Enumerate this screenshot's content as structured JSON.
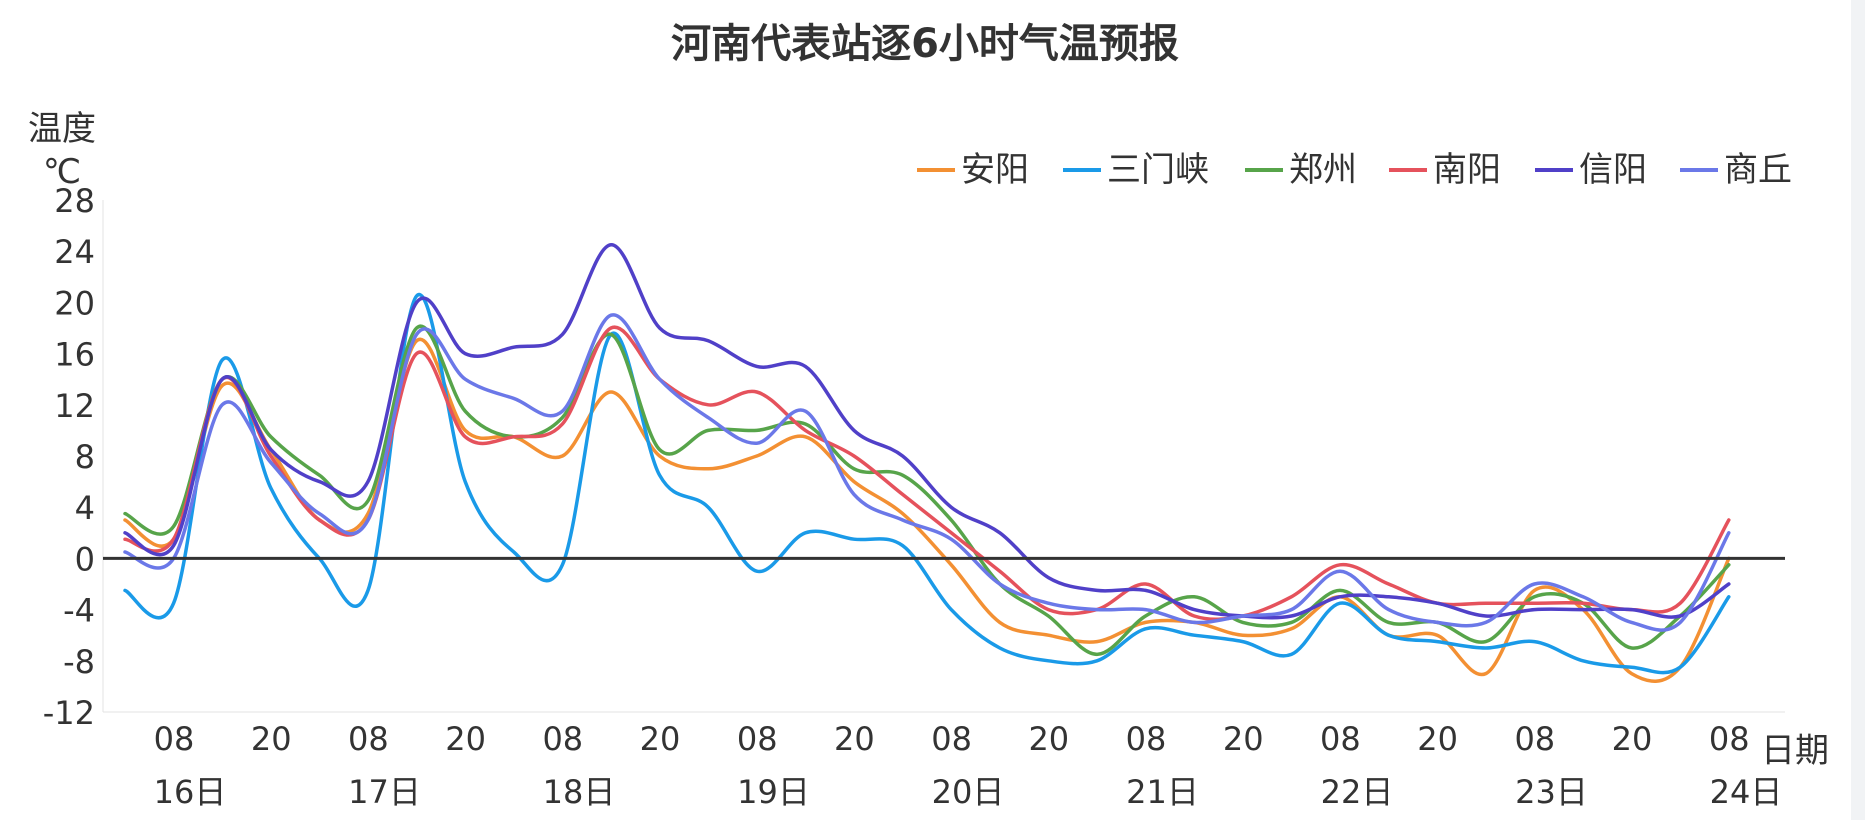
{
  "chart_data": {
    "type": "line",
    "title": "河南代表站逐6小时气温预报",
    "ylabel": "温度",
    "yunit": "℃",
    "xlabel": "日期",
    "ylim": [
      -12,
      28
    ],
    "yticks": [
      28,
      24,
      20,
      16,
      12,
      8,
      4,
      0,
      -4,
      -8,
      -12
    ],
    "hour_labels": [
      "08",
      "20",
      "08",
      "20",
      "08",
      "20",
      "08",
      "20",
      "08",
      "20",
      "08",
      "20",
      "08",
      "20",
      "08",
      "20",
      "08"
    ],
    "day_labels": [
      "16日",
      "17日",
      "18日",
      "19日",
      "20日",
      "21日",
      "22日",
      "23日",
      "24日"
    ],
    "zero_line": true,
    "legend_position": "top-right",
    "series": [
      {
        "name": "安阳",
        "color": "#f39033",
        "values": [
          3.0,
          1.5,
          13.5,
          8.5,
          3.0,
          3.5,
          17.0,
          10.0,
          9.5,
          8.0,
          13.0,
          8.0,
          7.0,
          8.0,
          9.5,
          6.0,
          3.5,
          -0.5,
          -5.0,
          -6.0,
          -6.5,
          -5.0,
          -5.0,
          -6.0,
          -5.5,
          -3.0,
          -6.0,
          -6.0,
          -9.0,
          -2.5,
          -4.0,
          -9.0,
          -8.5,
          0.0
        ]
      },
      {
        "name": "三门峡",
        "color": "#1a9ae8",
        "values": [
          -2.5,
          -3.5,
          15.5,
          5.5,
          0.0,
          -2.5,
          20.5,
          6.0,
          0.5,
          -0.5,
          17.5,
          6.5,
          4.0,
          -1.0,
          2.0,
          1.5,
          1.0,
          -4.0,
          -7.0,
          -8.0,
          -8.0,
          -5.5,
          -6.0,
          -6.5,
          -7.5,
          -3.5,
          -6.0,
          -6.5,
          -7.0,
          -6.5,
          -8.0,
          -8.5,
          -8.5,
          -3.0
        ]
      },
      {
        "name": "郑州",
        "color": "#57a44a",
        "values": [
          3.5,
          2.5,
          14.0,
          9.5,
          6.5,
          4.5,
          18.0,
          11.5,
          9.5,
          11.0,
          17.5,
          8.5,
          10.0,
          10.0,
          10.5,
          7.0,
          6.5,
          3.0,
          -2.0,
          -4.5,
          -7.5,
          -4.5,
          -3.0,
          -5.0,
          -5.0,
          -2.5,
          -5.0,
          -5.0,
          -6.5,
          -3.0,
          -3.5,
          -7.0,
          -4.5,
          -0.5
        ]
      },
      {
        "name": "南阳",
        "color": "#e5525c",
        "values": [
          1.5,
          1.5,
          14.0,
          8.0,
          3.0,
          3.0,
          16.0,
          9.5,
          9.5,
          10.5,
          18.0,
          14.0,
          12.0,
          13.0,
          10.0,
          8.0,
          5.0,
          2.0,
          -1.0,
          -4.0,
          -4.0,
          -2.0,
          -4.5,
          -4.5,
          -3.0,
          -0.5,
          -2.0,
          -3.5,
          -3.5,
          -3.5,
          -3.5,
          -4.0,
          -3.5,
          3.0
        ]
      },
      {
        "name": "信阳",
        "color": "#5040c8",
        "values": [
          2.0,
          1.0,
          14.0,
          8.5,
          6.0,
          6.0,
          20.0,
          16.0,
          16.5,
          17.5,
          24.5,
          18.0,
          17.0,
          15.0,
          15.0,
          10.0,
          8.0,
          4.0,
          2.0,
          -1.5,
          -2.5,
          -2.5,
          -4.0,
          -4.5,
          -4.5,
          -3.0,
          -3.0,
          -3.5,
          -4.5,
          -4.0,
          -4.0,
          -4.0,
          -4.5,
          -2.0
        ]
      },
      {
        "name": "商丘",
        "color": "#6b78e8",
        "values": [
          0.5,
          0.0,
          12.0,
          7.5,
          3.5,
          3.0,
          17.5,
          14.0,
          12.5,
          11.5,
          19.0,
          14.0,
          11.0,
          9.0,
          11.5,
          5.0,
          3.0,
          1.5,
          -2.0,
          -3.5,
          -4.0,
          -4.0,
          -5.0,
          -4.5,
          -4.0,
          -1.0,
          -4.0,
          -5.0,
          -5.0,
          -2.0,
          -3.0,
          -5.0,
          -5.0,
          2.0
        ]
      }
    ]
  }
}
